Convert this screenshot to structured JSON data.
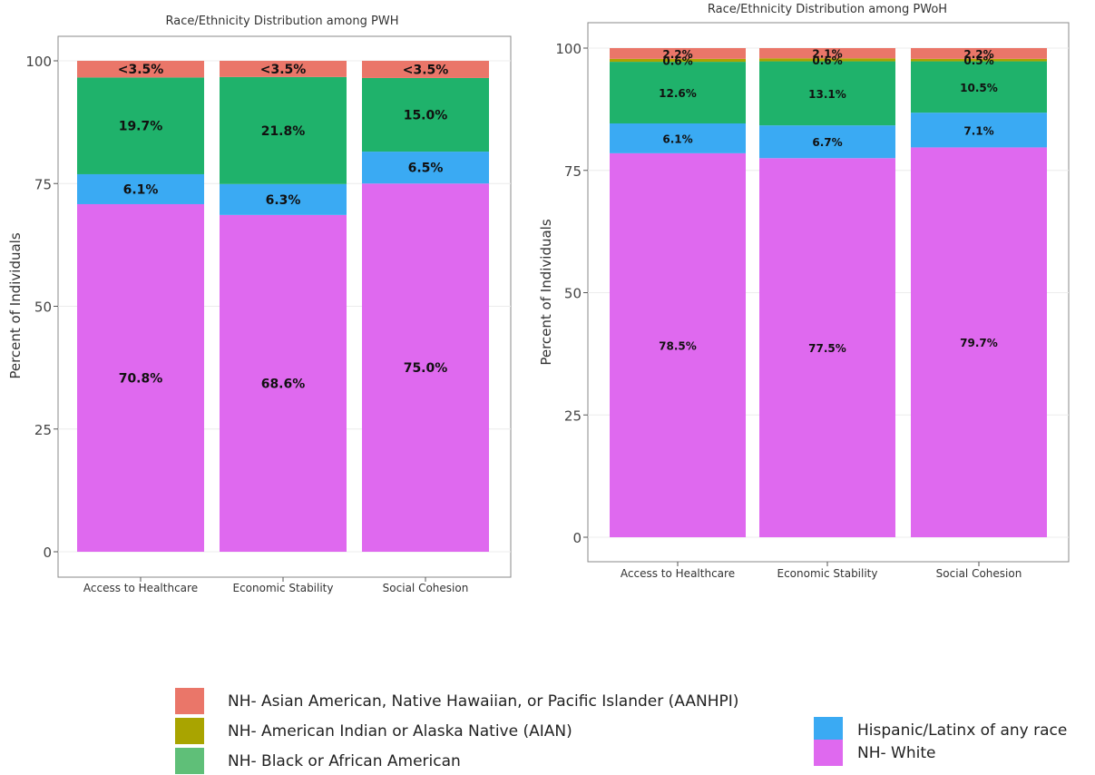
{
  "colors": {
    "aanhpi": "#ea7669",
    "aian": "#a9a400",
    "black": "#1fb26b",
    "hispanic": "#3aaaf3",
    "white": "#df69ef",
    "legend_black": "#5fbf78"
  },
  "chart_data": [
    {
      "type": "bar",
      "stacked": true,
      "title": "Race/Ethnicity Distribution among PWH",
      "ylabel": "Percent of Individuals",
      "xlabel": "",
      "ylim": [
        0,
        100
      ],
      "yticks": [
        "0",
        "25",
        "50",
        "75",
        "100"
      ],
      "categories": [
        "Access to Healthcare",
        "Economic Stability",
        "Social Cohesion"
      ],
      "series": [
        {
          "name": "NH- White",
          "key": "white",
          "values": [
            70.8,
            68.6,
            75.0
          ],
          "labels": [
            "70.8%",
            "68.6%",
            "75.0%"
          ]
        },
        {
          "name": "Hispanic/Latinx of any race",
          "key": "hispanic",
          "values": [
            6.1,
            6.3,
            6.5
          ],
          "labels": [
            "6.1%",
            "6.3%",
            "6.5%"
          ]
        },
        {
          "name": "NH- Black or African American",
          "key": "black",
          "values": [
            19.7,
            21.8,
            15.0
          ],
          "labels": [
            "19.7%",
            "21.8%",
            "15.0%"
          ]
        },
        {
          "name": "NH- American Indian or Alaska Native (AIAN)",
          "key": "aian",
          "values": [
            0,
            0,
            0
          ],
          "labels": [
            "",
            "",
            ""
          ]
        },
        {
          "name": "NH- Asian American, Native Hawaiian, or Pacific Islander (AANHPI)",
          "key": "aanhpi",
          "values": [
            3.4,
            3.3,
            3.5
          ],
          "labels": [
            "<3.5%",
            "<3.5%",
            "<3.5%"
          ]
        }
      ]
    },
    {
      "type": "bar",
      "stacked": true,
      "title": "Race/Ethnicity Distribution among PWoH",
      "ylabel": "Percent of Individuals",
      "xlabel": "",
      "ylim": [
        0,
        100
      ],
      "yticks": [
        "0",
        "25",
        "50",
        "75",
        "100"
      ],
      "categories": [
        "Access to Healthcare",
        "Economic Stability",
        "Social Cohesion"
      ],
      "series": [
        {
          "name": "NH- White",
          "key": "white",
          "values": [
            78.5,
            77.5,
            79.7
          ],
          "labels": [
            "78.5%",
            "77.5%",
            "79.7%"
          ]
        },
        {
          "name": "Hispanic/Latinx of any race",
          "key": "hispanic",
          "values": [
            6.1,
            6.7,
            7.1
          ],
          "labels": [
            "6.1%",
            "6.7%",
            "7.1%"
          ]
        },
        {
          "name": "NH- Black or African American",
          "key": "black",
          "values": [
            12.6,
            13.1,
            10.5
          ],
          "labels": [
            "12.6%",
            "13.1%",
            "10.5%"
          ]
        },
        {
          "name": "NH- American Indian or Alaska Native (AIAN)",
          "key": "aian",
          "values": [
            0.6,
            0.6,
            0.5
          ],
          "labels": [
            "0.6%",
            "0.6%",
            "0.5%"
          ]
        },
        {
          "name": "NH- Asian American, Native Hawaiian, or Pacific Islander (AANHPI)",
          "key": "aanhpi",
          "values": [
            2.2,
            2.1,
            2.2
          ],
          "labels": [
            "2.2%",
            "2.1%",
            "2.2%"
          ]
        }
      ]
    }
  ],
  "legend": {
    "left": [
      {
        "key": "aanhpi",
        "label": "NH- Asian American, Native Hawaiian, or Pacific Islander (AANHPI)"
      },
      {
        "key": "aian",
        "label": "NH- American Indian or Alaska Native (AIAN)"
      },
      {
        "key": "black",
        "label": "NH- Black or African American"
      }
    ],
    "right": [
      {
        "key": "hispanic",
        "label": "Hispanic/Latinx of any race"
      },
      {
        "key": "white",
        "label": "NH- White"
      }
    ]
  }
}
